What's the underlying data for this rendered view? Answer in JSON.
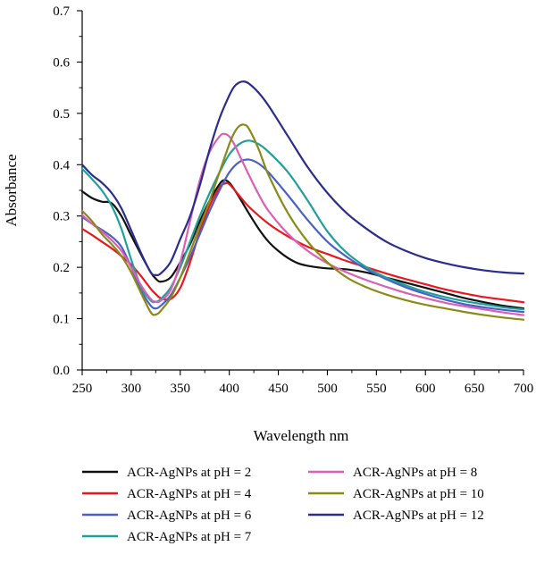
{
  "chart_data": {
    "type": "line",
    "title": "",
    "xlabel": "Wavelength nm",
    "ylabel": "Absorbance",
    "xlim": [
      250,
      700
    ],
    "ylim": [
      0.0,
      0.7
    ],
    "xticks": [
      "250",
      "300",
      "350",
      "400",
      "450",
      "500",
      "550",
      "600",
      "650",
      "700"
    ],
    "yticks": [
      "0.0",
      "0.1",
      "0.2",
      "0.3",
      "0.4",
      "0.5",
      "0.6",
      "0.7"
    ],
    "grid": false,
    "legend_position": "bottom",
    "series": [
      {
        "name": "ACR-AgNPs at pH = 2",
        "color": "#111111",
        "x": [
          250,
          260,
          270,
          280,
          290,
          300,
          310,
          320,
          325,
          330,
          340,
          350,
          360,
          370,
          380,
          390,
          395,
          400,
          405,
          410,
          420,
          430,
          440,
          450,
          460,
          470,
          480,
          490,
          500,
          520,
          540,
          560,
          580,
          600,
          620,
          640,
          660,
          680,
          700
        ],
        "y": [
          0.348,
          0.335,
          0.328,
          0.325,
          0.3,
          0.262,
          0.225,
          0.19,
          0.178,
          0.172,
          0.18,
          0.21,
          0.245,
          0.29,
          0.33,
          0.362,
          0.37,
          0.365,
          0.352,
          0.337,
          0.305,
          0.275,
          0.25,
          0.232,
          0.218,
          0.208,
          0.203,
          0.2,
          0.198,
          0.196,
          0.19,
          0.18,
          0.17,
          0.16,
          0.15,
          0.14,
          0.132,
          0.125,
          0.12
        ]
      },
      {
        "name": "ACR-AgNPs at pH = 4",
        "color": "#e8191c",
        "x": [
          250,
          260,
          270,
          280,
          290,
          300,
          310,
          320,
          325,
          330,
          340,
          350,
          360,
          370,
          380,
          390,
          395,
          400,
          410,
          420,
          440,
          460,
          480,
          500,
          520,
          540,
          560,
          580,
          600,
          620,
          640,
          660,
          680,
          700
        ],
        "y": [
          0.275,
          0.263,
          0.25,
          0.237,
          0.222,
          0.205,
          0.183,
          0.158,
          0.148,
          0.14,
          0.138,
          0.16,
          0.21,
          0.27,
          0.32,
          0.355,
          0.363,
          0.362,
          0.34,
          0.318,
          0.285,
          0.26,
          0.24,
          0.226,
          0.212,
          0.2,
          0.188,
          0.177,
          0.167,
          0.157,
          0.149,
          0.142,
          0.137,
          0.132
        ]
      },
      {
        "name": "ACR-AgNPs at pH = 6",
        "color": "#4d5ec4",
        "x": [
          250,
          260,
          270,
          280,
          290,
          300,
          310,
          320,
          325,
          330,
          340,
          350,
          360,
          370,
          380,
          390,
          400,
          410,
          420,
          430,
          440,
          460,
          480,
          500,
          520,
          540,
          560,
          580,
          600,
          620,
          640,
          660,
          680,
          700
        ],
        "y": [
          0.298,
          0.285,
          0.273,
          0.26,
          0.24,
          0.2,
          0.155,
          0.125,
          0.12,
          0.125,
          0.145,
          0.18,
          0.22,
          0.265,
          0.31,
          0.35,
          0.385,
          0.405,
          0.41,
          0.402,
          0.385,
          0.34,
          0.292,
          0.25,
          0.22,
          0.196,
          0.177,
          0.161,
          0.148,
          0.137,
          0.128,
          0.122,
          0.117,
          0.113
        ]
      },
      {
        "name": "ACR-AgNPs at pH = 7",
        "color": "#21a09a",
        "x": [
          250,
          260,
          270,
          280,
          290,
          300,
          310,
          320,
          325,
          330,
          340,
          350,
          360,
          370,
          380,
          390,
          400,
          410,
          420,
          430,
          440,
          460,
          480,
          500,
          520,
          540,
          560,
          580,
          600,
          620,
          640,
          660,
          680,
          700
        ],
        "y": [
          0.392,
          0.372,
          0.35,
          0.32,
          0.275,
          0.215,
          0.162,
          0.135,
          0.133,
          0.138,
          0.16,
          0.2,
          0.25,
          0.3,
          0.345,
          0.385,
          0.42,
          0.44,
          0.447,
          0.44,
          0.425,
          0.385,
          0.33,
          0.27,
          0.228,
          0.2,
          0.18,
          0.165,
          0.152,
          0.142,
          0.134,
          0.128,
          0.122,
          0.118
        ]
      },
      {
        "name": "ACR-AgNPs at pH = 8",
        "color": "#dd5fb3",
        "x": [
          250,
          260,
          270,
          280,
          290,
          300,
          310,
          320,
          325,
          330,
          340,
          350,
          360,
          370,
          380,
          390,
          395,
          400,
          405,
          410,
          420,
          430,
          440,
          460,
          480,
          500,
          520,
          540,
          560,
          580,
          600,
          620,
          640,
          660,
          680,
          700
        ],
        "y": [
          0.302,
          0.285,
          0.27,
          0.253,
          0.232,
          0.2,
          0.165,
          0.138,
          0.133,
          0.135,
          0.155,
          0.21,
          0.29,
          0.37,
          0.425,
          0.455,
          0.46,
          0.455,
          0.44,
          0.42,
          0.38,
          0.342,
          0.31,
          0.265,
          0.232,
          0.208,
          0.19,
          0.175,
          0.162,
          0.15,
          0.14,
          0.131,
          0.124,
          0.118,
          0.112,
          0.107
        ]
      },
      {
        "name": "ACR-AgNPs at pH = 10",
        "color": "#8a8a18",
        "x": [
          250,
          260,
          270,
          280,
          290,
          300,
          310,
          320,
          325,
          330,
          340,
          350,
          360,
          370,
          380,
          390,
          400,
          405,
          410,
          415,
          420,
          430,
          440,
          460,
          480,
          500,
          520,
          540,
          560,
          580,
          600,
          620,
          640,
          660,
          680,
          700
        ],
        "y": [
          0.31,
          0.29,
          0.265,
          0.245,
          0.222,
          0.19,
          0.15,
          0.112,
          0.108,
          0.115,
          0.14,
          0.18,
          0.23,
          0.28,
          0.33,
          0.385,
          0.44,
          0.462,
          0.475,
          0.478,
          0.47,
          0.43,
          0.38,
          0.305,
          0.25,
          0.21,
          0.18,
          0.161,
          0.147,
          0.136,
          0.127,
          0.12,
          0.113,
          0.107,
          0.102,
          0.098
        ]
      },
      {
        "name": "ACR-AgNPs at pH = 12",
        "color": "#2a2d8c",
        "x": [
          250,
          260,
          270,
          280,
          290,
          300,
          310,
          320,
          325,
          330,
          340,
          350,
          360,
          370,
          380,
          390,
          400,
          405,
          410,
          415,
          420,
          430,
          440,
          460,
          480,
          500,
          520,
          540,
          560,
          580,
          600,
          620,
          640,
          660,
          680,
          700
        ],
        "y": [
          0.4,
          0.38,
          0.365,
          0.345,
          0.315,
          0.272,
          0.228,
          0.19,
          0.185,
          0.188,
          0.21,
          0.255,
          0.3,
          0.36,
          0.43,
          0.49,
          0.535,
          0.552,
          0.56,
          0.562,
          0.558,
          0.54,
          0.515,
          0.455,
          0.395,
          0.345,
          0.305,
          0.275,
          0.25,
          0.232,
          0.218,
          0.208,
          0.2,
          0.194,
          0.19,
          0.188
        ]
      }
    ]
  }
}
